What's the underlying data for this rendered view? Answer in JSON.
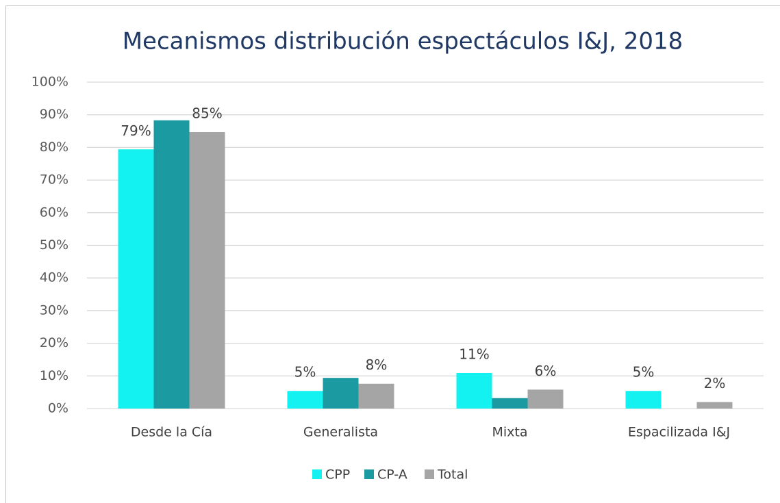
{
  "chart_data": {
    "type": "bar",
    "title": "Mecanismos distribución espectáculos I&J, 2018",
    "categories": [
      "Desde la Cía",
      "Generalista",
      "Mixta",
      "Espacilizada I&J"
    ],
    "series": [
      {
        "name": "CPP",
        "color": "#13f1f1",
        "values": [
          79.4,
          5.4,
          10.9,
          5.4
        ],
        "value_labels": [
          "79%",
          "5%",
          "11%",
          "5%"
        ]
      },
      {
        "name": "CP-A",
        "color": "#1b9ba1",
        "values": [
          88.3,
          9.4,
          3.2,
          0
        ]
      },
      {
        "name": "Total",
        "color": "#a5a5a5",
        "values": [
          84.7,
          7.6,
          5.8,
          2.0
        ],
        "value_labels": [
          "85%",
          "8%",
          "6%",
          "2%"
        ]
      }
    ],
    "ylim": [
      0,
      100
    ],
    "yticks": [
      {
        "value": 0,
        "label": "0%"
      },
      {
        "value": 10,
        "label": "10%"
      },
      {
        "value": 20,
        "label": "20%"
      },
      {
        "value": 30,
        "label": "30%"
      },
      {
        "value": 40,
        "label": "40%"
      },
      {
        "value": 50,
        "label": "50%"
      },
      {
        "value": 60,
        "label": "60%"
      },
      {
        "value": 70,
        "label": "70%"
      },
      {
        "value": 80,
        "label": "80%"
      },
      {
        "value": 90,
        "label": "90%"
      },
      {
        "value": 100,
        "label": "100%"
      }
    ],
    "grid": true,
    "legend": "bottom"
  }
}
